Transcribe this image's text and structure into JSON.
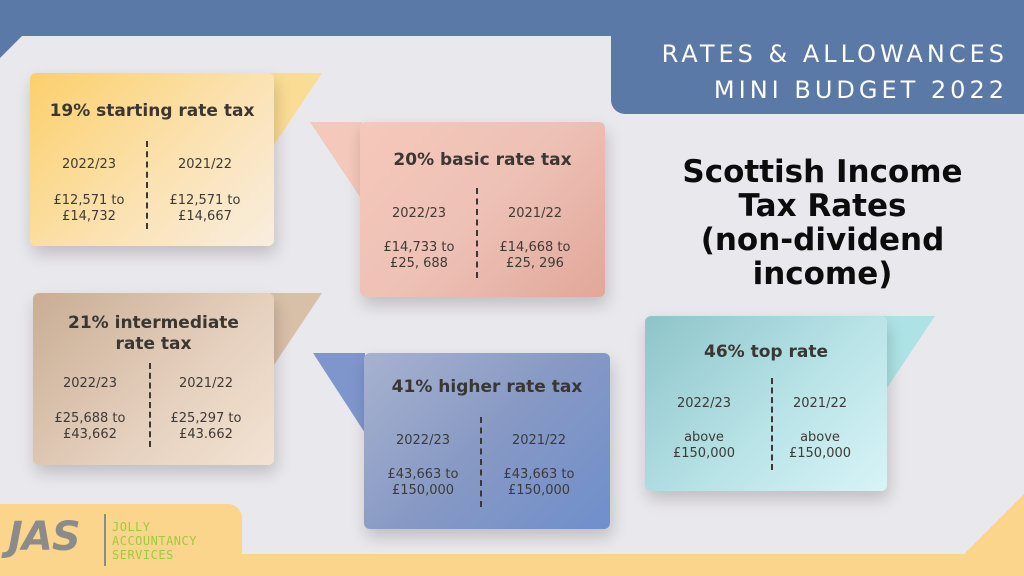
{
  "header": {
    "line1": "RATES & ALLOWANCES",
    "line2": "MINI BUDGET 2022"
  },
  "title": {
    "line1": "Scottish Income",
    "line2": "Tax Rates",
    "line3": "(non-dividend",
    "line4": "income)"
  },
  "colors": {
    "header_blue": "#5b79a6",
    "accent_yellow": "#fbd58b",
    "logo_green": "#9ccc3c"
  },
  "cards": [
    {
      "title_line1": "19% starting rate tax",
      "title_line2": "",
      "left_year": "2022/23",
      "left_value_line1": "£12,571 to",
      "left_value_line2": "£14,732",
      "right_year": "2021/22",
      "right_value_line1": "£12,571 to",
      "right_value_line2": "£14,667"
    },
    {
      "title_line1": "20% basic rate tax",
      "title_line2": "",
      "left_year": "2022/23",
      "left_value_line1": "£14,733 to",
      "left_value_line2": "£25, 688",
      "right_year": "2021/22",
      "right_value_line1": "£14,668 to",
      "right_value_line2": "£25, 296"
    },
    {
      "title_line1": "21% intermediate",
      "title_line2": "rate tax",
      "left_year": "2022/23",
      "left_value_line1": "£25,688 to",
      "left_value_line2": "£43,662",
      "right_year": "2021/22",
      "right_value_line1": "£25,297 to",
      "right_value_line2": "£43.662"
    },
    {
      "title_line1": "41% higher rate tax",
      "title_line2": "",
      "left_year": "2022/23",
      "left_value_line1": "£43,663 to",
      "left_value_line2": "£150,000",
      "right_year": "2021/22",
      "right_value_line1": "£43,663 to",
      "right_value_line2": "£150,000"
    },
    {
      "title_line1": "46% top rate",
      "title_line2": "",
      "left_year": "2022/23",
      "left_value_line1": "above",
      "left_value_line2": "£150,000",
      "right_year": "2021/22",
      "right_value_line1": "above",
      "right_value_line2": "£150,000"
    }
  ],
  "logo": {
    "mark": "JAS",
    "line1": "JOLLY",
    "line2": "ACCOUNTANCY",
    "line3": "SERVICES"
  }
}
